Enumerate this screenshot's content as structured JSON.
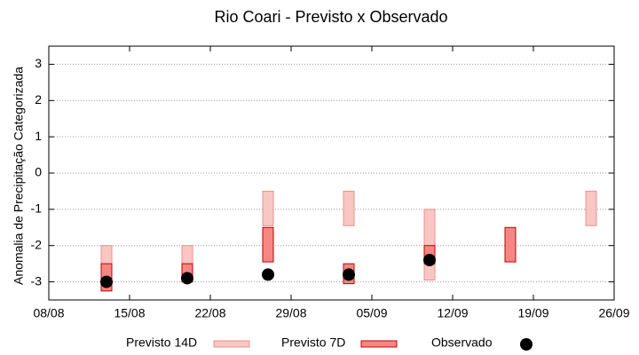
{
  "chart_data": {
    "type": "range",
    "title": "Rio Coari - Previsto x Observado",
    "y_label": "Anomalia de Precipitação Categorizada",
    "xlim": [
      "08/08",
      "26/09"
    ],
    "xticks": [
      "08/08",
      "15/08",
      "22/08",
      "29/08",
      "05/09",
      "12/09",
      "19/09",
      "26/09"
    ],
    "ylim": [
      -3.5,
      3.5
    ],
    "yticks": [
      3,
      2,
      1,
      0,
      -1,
      -2,
      -3
    ],
    "grid": true,
    "series": [
      {
        "name": "Previsto 14D",
        "type": "range",
        "color": "#f9c6c3",
        "stroke": "#e9928e",
        "x": [
          "13/08",
          "20/08",
          "27/08",
          "03/09",
          "10/09",
          "24/09"
        ],
        "low": [
          -3.25,
          -3,
          -1.45,
          -1.45,
          -2.95,
          -1.45
        ],
        "high": [
          -2,
          -2,
          -0.5,
          -0.5,
          -1,
          -0.5
        ]
      },
      {
        "name": "Previsto 7D",
        "type": "range",
        "color": "#f48783",
        "stroke": "#c40000",
        "x": [
          "13/08",
          "20/08",
          "27/08",
          "03/09",
          "10/09",
          "17/09"
        ],
        "low": [
          -3.25,
          -3,
          -2.45,
          -3.05,
          -2.5,
          -2.45
        ],
        "high": [
          -2.5,
          -2.5,
          -1.5,
          -2.5,
          -2,
          -1.5
        ]
      },
      {
        "name": "Observado",
        "type": "scatter",
        "color": "#000000",
        "x": [
          "13/08",
          "20/08",
          "27/08",
          "03/09",
          "10/09"
        ],
        "values": [
          -3,
          -2.9,
          -2.8,
          -2.8,
          -2.4
        ]
      }
    ]
  }
}
